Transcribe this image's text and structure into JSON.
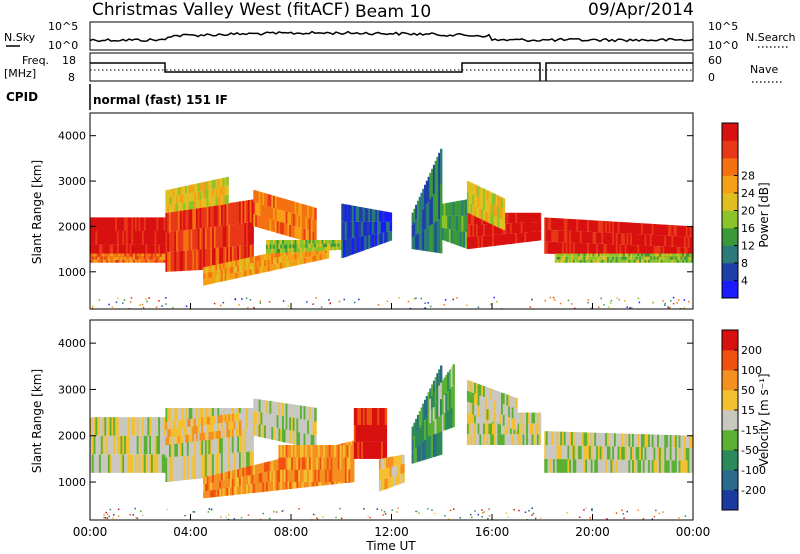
{
  "header": {
    "title": "Christmas Valley West (fitACF)",
    "beam": "Beam 10",
    "date": "09/Apr/2014"
  },
  "strip": {
    "nsky_label": "N.Sky",
    "nsearch_label": "N.Search",
    "noise_ticks": [
      "10^5",
      "10^0"
    ],
    "freq_label_1": "Freq.",
    "freq_label_2": "[MHz]",
    "freq_ticks": [
      "18",
      "8"
    ],
    "nave_ticks": [
      "60",
      "0"
    ],
    "nave_label": "Nave",
    "cpid_label": "CPID",
    "cpid_text": "normal (fast) 151 IF"
  },
  "chart_data": [
    {
      "type": "heatmap",
      "title": "Power",
      "ylabel": "Slant Range [km]",
      "yticks": [
        "1000",
        "2000",
        "3000",
        "4000"
      ],
      "ylim": [
        180,
        4500
      ],
      "xlim_hours": [
        0,
        24
      ],
      "colorbar": {
        "label": "Power [dB]",
        "ticks": [
          "4",
          "8",
          "12",
          "16",
          "20",
          "24",
          "28"
        ],
        "colors": [
          "#1a1aff",
          "#1e3fa8",
          "#2a7a7a",
          "#3a9a3a",
          "#8ac42a",
          "#e0c020",
          "#f5a015",
          "#f57010",
          "#e83818",
          "#d81010"
        ]
      }
    },
    {
      "type": "heatmap",
      "title": "Velocity",
      "ylabel": "Slant Range [km]",
      "yticks": [
        "1000",
        "2000",
        "3000",
        "4000"
      ],
      "ylim": [
        180,
        4500
      ],
      "xlim_hours": [
        0,
        24
      ],
      "colorbar": {
        "label": "Velocity [m s⁻¹]",
        "ticks": [
          "200",
          "100",
          "50",
          "15",
          "-15",
          "-50",
          "-100",
          "-200"
        ],
        "colors": [
          "#1a3aa0",
          "#2a6a8a",
          "#2a8a5a",
          "#5ab030",
          "#c8c8c0",
          "#f5c030",
          "#f59020",
          "#f05010",
          "#d81010"
        ]
      }
    }
  ],
  "xaxis": {
    "label": "Time UT",
    "ticks": [
      "00:00",
      "04:00",
      "08:00",
      "12:00",
      "16:00",
      "20:00",
      "00:00"
    ]
  }
}
